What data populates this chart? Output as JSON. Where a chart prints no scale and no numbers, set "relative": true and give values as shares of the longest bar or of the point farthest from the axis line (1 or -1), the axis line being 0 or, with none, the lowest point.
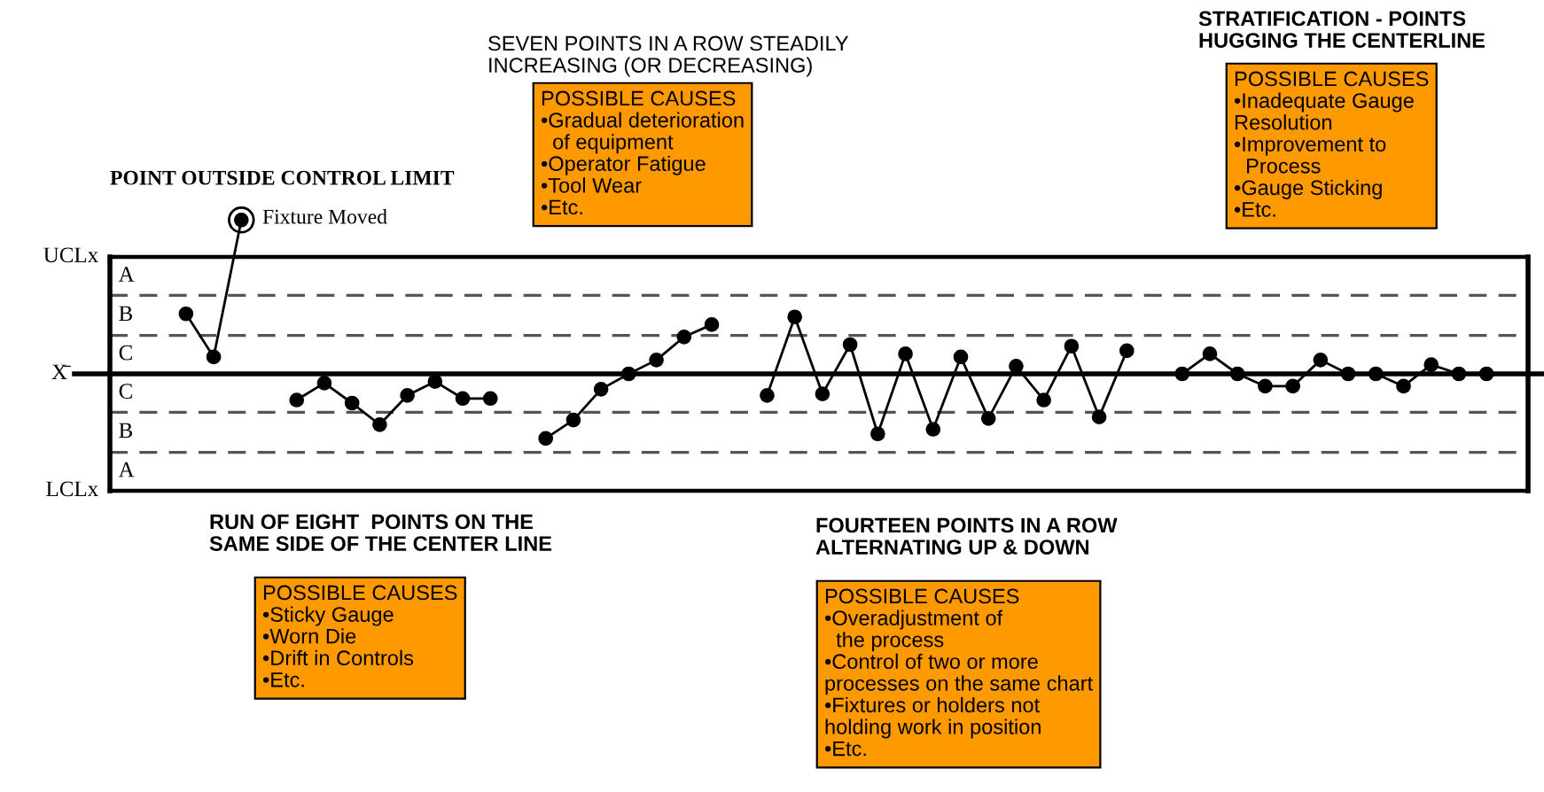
{
  "chart_data": {
    "type": "line",
    "categories": [
      null,
      null,
      null,
      null,
      null,
      null,
      null,
      null,
      null,
      null,
      null,
      null,
      null,
      null,
      null,
      null,
      null,
      null,
      null,
      null,
      null,
      null,
      null,
      null,
      null,
      null,
      null,
      null,
      null,
      null,
      null,
      null,
      null,
      null,
      null,
      null,
      null,
      null,
      null,
      null,
      null,
      null,
      null,
      null,
      null,
      null,
      null,
      null,
      null,
      null
    ],
    "relative": true,
    "series": [
      {
        "color": "#000000",
        "values": [
          null,
          0.39,
          0.11,
          1,
          null,
          null,
          null,
          null,
          null,
          null,
          null,
          null,
          null,
          null,
          null,
          null,
          null,
          null,
          null,
          null,
          null,
          null,
          null,
          null,
          null,
          null,
          null,
          null,
          null,
          null,
          null,
          null,
          null,
          null,
          null,
          null,
          null,
          null,
          null,
          null,
          null,
          null,
          null,
          null,
          null,
          null,
          null,
          null,
          null,
          null
        ]
      },
      {
        "color": "#000000",
        "values": [
          null,
          null,
          null,
          null,
          null,
          -0.17,
          -0.06,
          -0.19,
          -0.33,
          -0.14,
          -0.05,
          -0.16,
          -0.16,
          null,
          null,
          null,
          null,
          null,
          null,
          null,
          null,
          null,
          null,
          null,
          null,
          null,
          null,
          null,
          null,
          null,
          null,
          null,
          null,
          null,
          null,
          null,
          null,
          null,
          null,
          null,
          null,
          null,
          null,
          null,
          null,
          null,
          null,
          null,
          null,
          null
        ]
      },
      {
        "color": "#000000",
        "values": [
          null,
          null,
          null,
          null,
          null,
          null,
          null,
          null,
          null,
          null,
          null,
          null,
          null,
          null,
          -0.42,
          -0.3,
          -0.1,
          0.0,
          0.09,
          0.24,
          0.32,
          null,
          null,
          null,
          null,
          null,
          null,
          null,
          null,
          null,
          null,
          null,
          null,
          null,
          null,
          null,
          null,
          null,
          null,
          null,
          null,
          null,
          null,
          null,
          null,
          null,
          null,
          null,
          null,
          null
        ]
      },
      {
        "color": "#000000",
        "values": [
          null,
          null,
          null,
          null,
          null,
          null,
          null,
          null,
          null,
          null,
          null,
          null,
          null,
          null,
          null,
          null,
          null,
          null,
          null,
          null,
          null,
          null,
          -0.14,
          0.37,
          -0.13,
          0.19,
          -0.39,
          0.13,
          -0.36,
          0.11,
          -0.29,
          0.05,
          -0.17,
          0.18,
          -0.28,
          0.15,
          null,
          null,
          null,
          null,
          null,
          null,
          null,
          null,
          null,
          null,
          null,
          null,
          null,
          null
        ]
      },
      {
        "color": "#000000",
        "values": [
          null,
          null,
          null,
          null,
          null,
          null,
          null,
          null,
          null,
          null,
          null,
          null,
          null,
          null,
          null,
          null,
          null,
          null,
          null,
          null,
          null,
          null,
          null,
          null,
          null,
          null,
          null,
          null,
          null,
          null,
          null,
          null,
          null,
          null,
          null,
          null,
          null,
          0.0,
          0.13,
          0.0,
          -0.08,
          -0.08,
          0.09,
          0.0,
          0.0,
          -0.08,
          0.06,
          0.0,
          0.0,
          null
        ]
      }
    ],
    "marker": "circle",
    "line_style": "solid",
    "ref_lines": [
      {
        "axis": "y",
        "value": 0.76,
        "label": "UCLx",
        "line_style": "solid"
      },
      {
        "axis": "y",
        "value": 0.51,
        "line_style": "dashed"
      },
      {
        "axis": "y",
        "value": 0.25,
        "line_style": "dashed"
      },
      {
        "axis": "y",
        "value": 0,
        "label": "X̄",
        "line_style": "solid"
      },
      {
        "axis": "y",
        "value": -0.25,
        "line_style": "dashed"
      },
      {
        "axis": "y",
        "value": -0.51,
        "line_style": "dashed"
      },
      {
        "axis": "y",
        "value": -0.76,
        "label": "LCLx",
        "line_style": "solid"
      }
    ],
    "annotations": [
      "POINT OUTSIDE CONTROL LIMIT",
      "Fixture Moved",
      "SEVEN POINTS IN A ROW STEADILY\nINCREASING (OR DECREASING)",
      "POSSIBLE CAUSES\n•Gradual deterioration\n  of equipment\n•Operator Fatigue\n•Tool Wear\n•Etc.",
      "STRATIFICATION - POINTS\nHUGGING THE CENTERLINE",
      "POSSIBLE CAUSES\n•Inadequate Gauge\nResolution\n•Improvement to\n  Process\n•Gauge Sticking\n•Etc.",
      "RUN OF EIGHT  POINTS ON THE\nSAME SIDE OF THE CENTER LINE",
      "POSSIBLE CAUSES\n•Sticky Gauge\n•Worn Die\n•Drift in Controls\n•Etc.",
      "FOURTEEN POINTS IN A ROW\nALTERNATING UP & DOWN",
      "POSSIBLE CAUSES\n•Overadjustment of\n  the process\n•Control of two or more\nprocesses on the same chart\n•Fixtures or holders not\nholding work in position\n•Etc.",
      "A",
      "B",
      "C",
      "C",
      "B",
      "A"
    ]
  }
}
